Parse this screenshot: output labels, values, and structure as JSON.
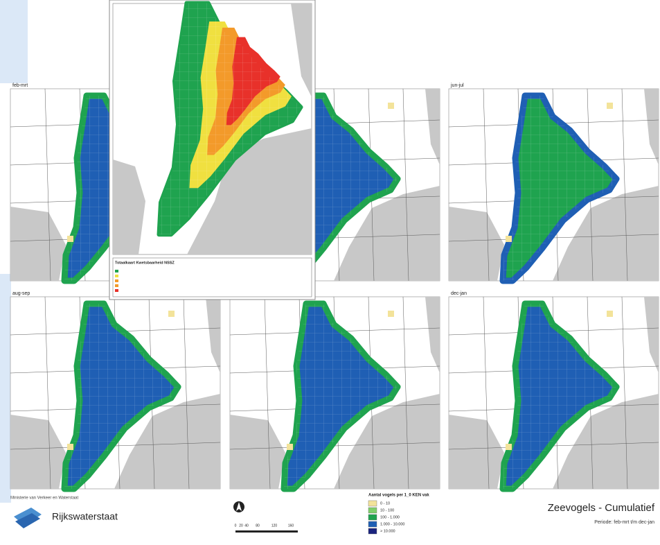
{
  "panels": [
    {
      "label": "feb-mrt"
    },
    {
      "label": "jun-jul"
    },
    {
      "label": "aug-sep"
    },
    {
      "label": "dec-jan"
    }
  ],
  "inset": {
    "title": "Totaalkaart Kwetsbaarheid NSSZ"
  },
  "legend": {
    "title": "Aantal vogels per 1_0 KEN vak",
    "items": [
      {
        "label": "0 - 10",
        "color": "#f3e39a"
      },
      {
        "label": "10 - 100",
        "color": "#7fcf6a"
      },
      {
        "label": "100 - 1.000",
        "color": "#1fa34f"
      },
      {
        "label": "1.000 - 10.000",
        "color": "#1f5fb4"
      },
      {
        "label": "> 10.000",
        "color": "#1a237e"
      }
    ]
  },
  "scale_bar": {
    "labels": [
      "0",
      "20",
      "40",
      "80",
      "120",
      "160"
    ]
  },
  "logo": {
    "ministry": "Ministerie van Verkeer en Waterstaat",
    "name": "Rijkswaterstaat"
  },
  "title": "Zeevogels - Cumulatief",
  "subtitle": "Periode: feb-mrt t/m dec-jan"
}
